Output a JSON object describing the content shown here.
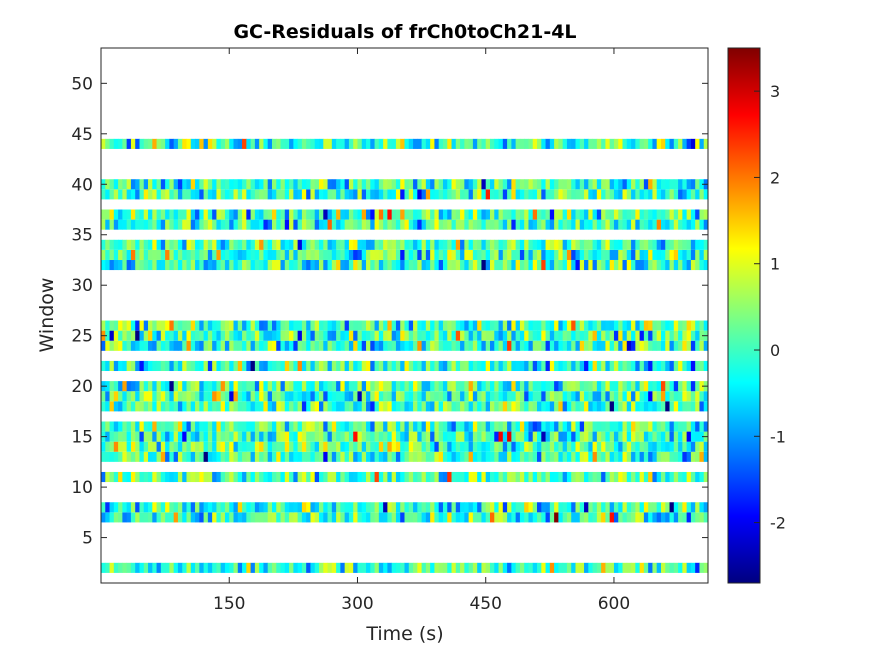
{
  "chart_data": {
    "type": "heatmap",
    "title": "GC-Residuals of frCh0toCh21-4L",
    "xlabel": "Time (s)",
    "ylabel": "Window",
    "xlim": [
      0,
      710
    ],
    "ylim": [
      0.5,
      53.5
    ],
    "xticks": [
      150,
      300,
      450,
      600
    ],
    "yticks": [
      5,
      10,
      15,
      20,
      25,
      30,
      35,
      40,
      45,
      50
    ],
    "colormap": "jet",
    "clim": [
      -2.7,
      3.5
    ],
    "colorbar_ticks": [
      -2,
      -1,
      0,
      1,
      2,
      3
    ],
    "grid": false,
    "time_bins": 142,
    "bin_width_s": 5,
    "populated_windows": [
      2,
      7,
      8,
      11,
      13,
      14,
      15,
      16,
      18,
      19,
      20,
      22,
      24,
      25,
      26,
      32,
      33,
      34,
      36,
      37,
      39,
      40,
      44
    ],
    "empty_windows": [
      1,
      3,
      4,
      5,
      6,
      9,
      10,
      12,
      17,
      21,
      23,
      27,
      28,
      29,
      30,
      31,
      35,
      38,
      41,
      42,
      43,
      45,
      46,
      47,
      48,
      49,
      50,
      51,
      52,
      53
    ],
    "value_distribution": {
      "mean": 0.0,
      "std": 0.7,
      "min": -2.7,
      "max": 3.5
    },
    "values_note": "Cell-level residual values are not individually legible; populated rows show noise-like residuals around 0 with occasional outliers."
  },
  "colors": {
    "axes_background": "#ffffff",
    "axis_line": "#262626",
    "text": "#262626"
  }
}
